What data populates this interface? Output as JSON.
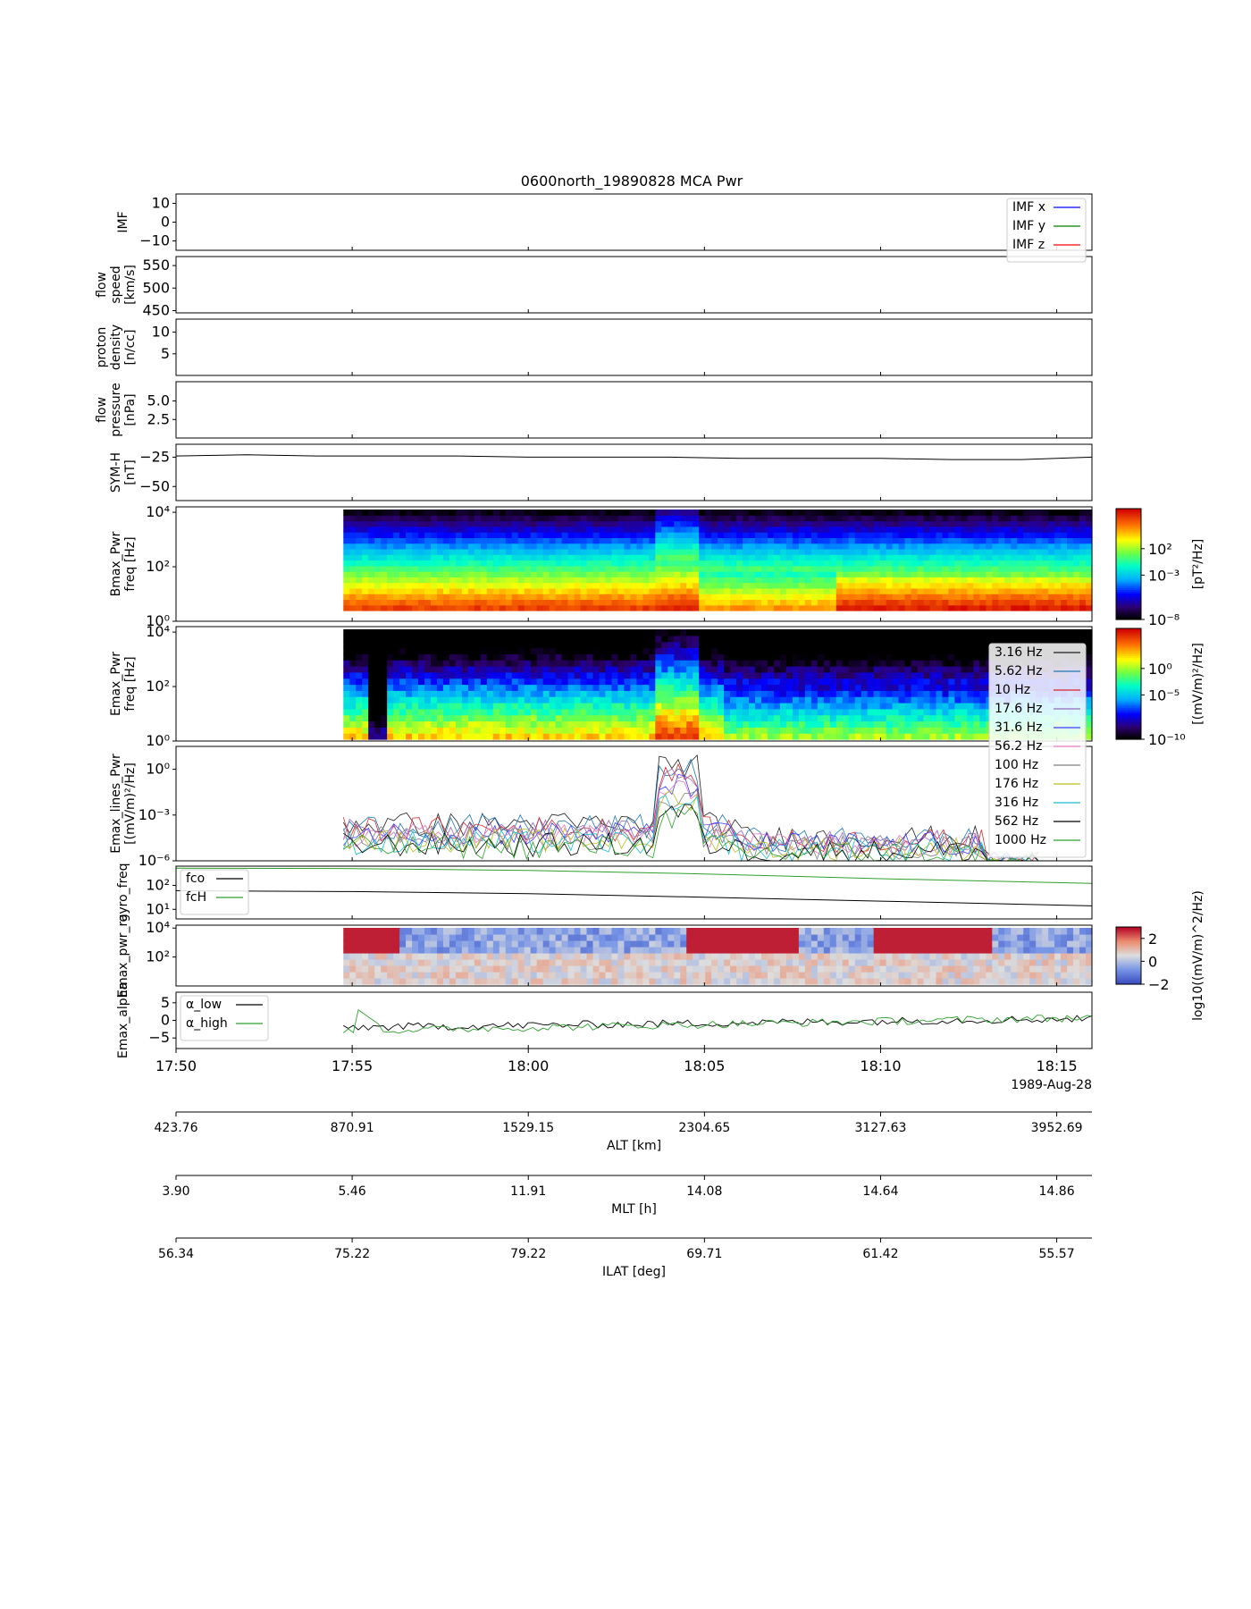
{
  "chart_data": {
    "type": "line",
    "title": "0600north_19890828 MCA Pwr",
    "date_label": "1989-Aug-28",
    "time_ticks": [
      "17:50",
      "17:55",
      "18:00",
      "18:05",
      "18:10",
      "18:15"
    ],
    "time_range": [
      "17:50",
      "18:16"
    ],
    "data_start": "17:54:45",
    "panels": [
      {
        "id": "imf",
        "ylabel": [
          "IMF"
        ],
        "ylim": [
          -15,
          15
        ],
        "yticks": [
          "10",
          "0",
          "−10"
        ],
        "ytick_values": [
          10,
          0,
          -10
        ],
        "legend": [
          {
            "name": "IMF x",
            "color": "#0000ff"
          },
          {
            "name": "IMF y",
            "color": "#008000"
          },
          {
            "name": "IMF z",
            "color": "#ff0000"
          }
        ]
      },
      {
        "id": "flow_speed",
        "ylabel": [
          "flow",
          "speed",
          "[km/s]"
        ],
        "ylim": [
          445,
          570
        ],
        "yticks": [
          "550",
          "500",
          "450"
        ],
        "ytick_values": [
          550,
          500,
          450
        ]
      },
      {
        "id": "proton_density",
        "ylabel": [
          "proton",
          "density",
          "[n/cc]"
        ],
        "ylim": [
          0,
          13
        ],
        "yticks": [
          "10",
          "5"
        ],
        "ytick_values": [
          10,
          5
        ]
      },
      {
        "id": "flow_pressure",
        "ylabel": [
          "flow",
          "pressure",
          "[nPa]"
        ],
        "ylim": [
          0,
          7.6
        ],
        "yticks": [
          "5.0",
          "2.5"
        ],
        "ytick_values": [
          5.0,
          2.5
        ]
      },
      {
        "id": "sym_h",
        "ylabel": [
          "SYM-H",
          "[nT]"
        ],
        "ylim": [
          -62,
          -14
        ],
        "yticks": [
          "−25",
          "−50"
        ],
        "ytick_values": [
          -25,
          -50
        ],
        "series": [
          {
            "color": "#000000",
            "x": [
              "17:50",
              "17:52",
              "17:54",
              "17:56",
              "17:58",
              "18:00",
              "18:02",
              "18:04",
              "18:06",
              "18:08",
              "18:10",
              "18:12",
              "18:14",
              "18:16"
            ],
            "y": [
              -24,
              -23,
              -24,
              -24,
              -24,
              -25,
              -25,
              -25,
              -26,
              -26,
              -26,
              -27,
              -27,
              -25
            ]
          }
        ]
      },
      {
        "id": "bmax_pwr",
        "ylabel": [
          "Bmax_Pwr",
          "freq [Hz]"
        ],
        "yticks": [
          "10⁴",
          "10²",
          "10⁰"
        ],
        "ylim_log10": [
          0,
          4.2
        ],
        "colorbar": {
          "label": "[pT²/Hz]",
          "ticks": [
            "10²",
            "10⁻³",
            "10⁻⁸"
          ],
          "colormap": "jet"
        }
      },
      {
        "id": "emax_pwr",
        "ylabel": [
          "Emax_Pwr",
          "freq [Hz]"
        ],
        "yticks": [
          "10⁴",
          "10²",
          "10⁰"
        ],
        "ylim_log10": [
          0,
          4.2
        ],
        "colorbar": {
          "label": "[(mV/m)²/Hz]",
          "ticks": [
            "10⁰",
            "10⁻⁵",
            "10⁻¹⁰"
          ],
          "colormap": "jet"
        }
      },
      {
        "id": "emax_lines_pwr",
        "ylabel": [
          "Emax_lines_Pwr",
          "[(mV/m)²/Hz]"
        ],
        "yticks": [
          "10⁰",
          "10⁻³",
          "10⁻⁶"
        ],
        "ylim_log10": [
          -6,
          1.5
        ],
        "legend": [
          {
            "name": "3.16 Hz",
            "color": "#1f1f1f"
          },
          {
            "name": "5.62 Hz",
            "color": "#1f77b4"
          },
          {
            "name": "10 Hz",
            "color": "#d62728"
          },
          {
            "name": "17.6 Hz",
            "color": "#9467bd"
          },
          {
            "name": "31.6 Hz",
            "color": "#3b3bff"
          },
          {
            "name": "56.2 Hz",
            "color": "#e377c2"
          },
          {
            "name": "100 Hz",
            "color": "#7f7f7f"
          },
          {
            "name": "176 Hz",
            "color": "#bcbd22"
          },
          {
            "name": "316 Hz",
            "color": "#17becf"
          },
          {
            "name": "562 Hz",
            "color": "#000000"
          },
          {
            "name": "1000 Hz",
            "color": "#2ca02c"
          }
        ]
      },
      {
        "id": "gyro_freq",
        "ylabel": [
          "gyro_freq"
        ],
        "yticks": [
          "10²",
          "10¹"
        ],
        "ylim_log10": [
          0.6,
          2.8
        ],
        "series": [
          {
            "name": "fco",
            "color": "#000000",
            "x": [
              "17:50",
              "17:55",
              "18:00",
              "18:05",
              "18:10",
              "18:16"
            ],
            "y": [
              60,
              55,
              45,
              32,
              22,
              14
            ]
          },
          {
            "name": "fcH",
            "color": "#2ca02c",
            "x": [
              "17:50",
              "17:55",
              "18:00",
              "18:05",
              "18:10",
              "18:16"
            ],
            "y": [
              520,
              500,
              420,
              300,
              190,
              120
            ]
          }
        ]
      },
      {
        "id": "emax_pwr_ratio",
        "ylabel": [
          "Emax_pwr_ra"
        ],
        "yticks": [
          "10⁴",
          "10²"
        ],
        "ylim_log10": [
          0,
          4.2
        ],
        "colorbar": {
          "label": "log10((mV/m)^2/Hz)",
          "ticks": [
            "2",
            "0",
            "−2"
          ],
          "colormap": "coolwarm"
        }
      },
      {
        "id": "emax_alpha",
        "ylabel": [
          "Emax_alpha"
        ],
        "ylim": [
          -8,
          8
        ],
        "yticks": [
          "5",
          "0",
          "−5"
        ],
        "ytick_values": [
          5,
          0,
          -5
        ],
        "legend": [
          {
            "name": "α_low",
            "color": "#000000"
          },
          {
            "name": "α_high",
            "color": "#2ca02c"
          }
        ]
      }
    ],
    "secondary_axes": [
      {
        "label": "ALT [km]",
        "ticks": [
          "423.76",
          "870.91",
          "1529.15",
          "2304.65",
          "3127.63",
          "3952.69"
        ]
      },
      {
        "label": "MLT [h]",
        "ticks": [
          "3.90",
          "5.46",
          "11.91",
          "14.08",
          "14.64",
          "14.86"
        ]
      },
      {
        "label": "ILAT [deg]",
        "ticks": [
          "56.34",
          "75.22",
          "79.22",
          "69.71",
          "61.42",
          "55.57"
        ]
      }
    ]
  }
}
